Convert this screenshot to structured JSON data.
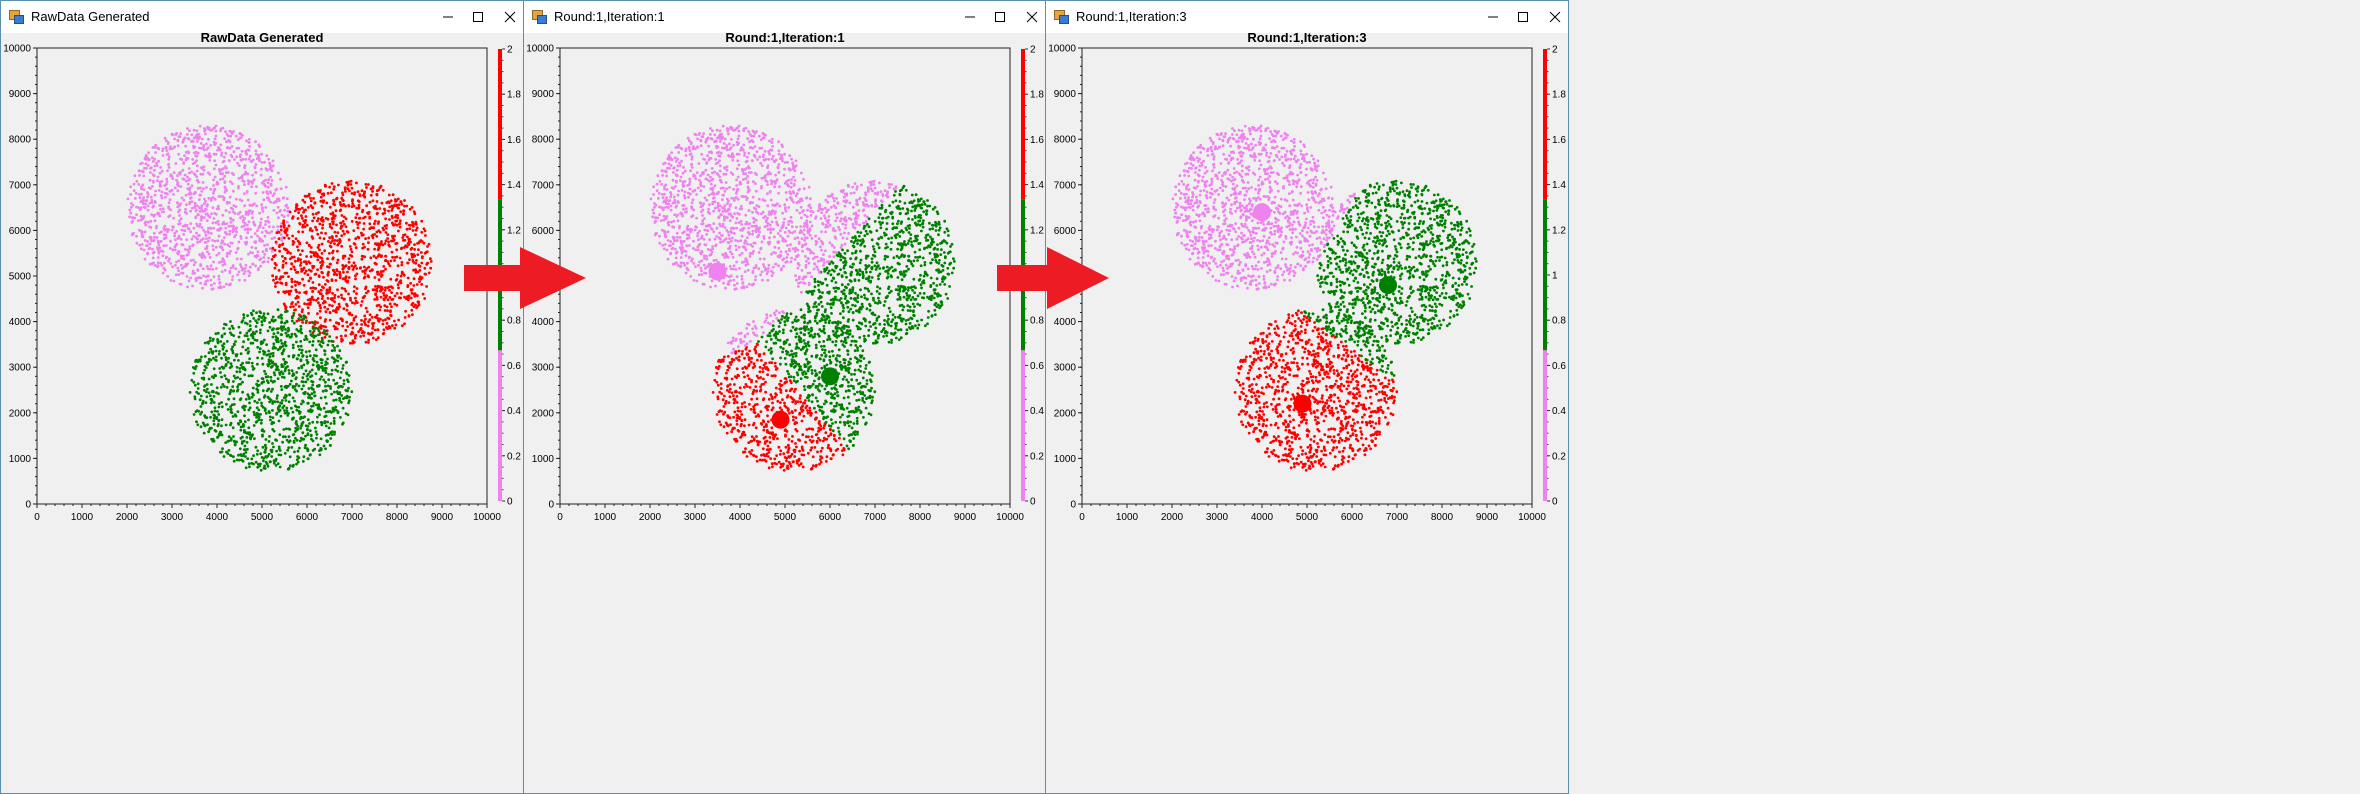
{
  "windows": [
    {
      "title": "RawData Generated",
      "chart_data": {
        "type": "scatter",
        "title": "RawData Generated",
        "xlim": [
          0,
          10000
        ],
        "ylim": [
          0,
          10000
        ],
        "xticks": [
          0,
          1000,
          2000,
          3000,
          4000,
          5000,
          6000,
          7000,
          8000,
          9000,
          10000
        ],
        "yticks": [
          0,
          1000,
          2000,
          3000,
          4000,
          5000,
          6000,
          7000,
          8000,
          9000,
          10000
        ],
        "colorbar": {
          "ticks": [
            "0",
            "0.2",
            "0.4",
            "0.6",
            "0.8",
            "1",
            "1.2",
            "1.4",
            "1.6",
            "1.8",
            "2"
          ],
          "colors": [
            "#ee82ee",
            "#008000",
            "#ff0000"
          ]
        },
        "clusters": [
          {
            "color": "#ee82ee",
            "center": [
              3800,
              6500
            ],
            "radius": 1800
          },
          {
            "color": "#ff0000",
            "center": [
              7000,
              5300
            ],
            "radius": 1800
          },
          {
            "color": "#008000",
            "center": [
              5200,
              2500
            ],
            "radius": 1800
          }
        ],
        "assignment": "by_cluster",
        "centroids": []
      }
    },
    {
      "title": "Round:1,Iteration:1",
      "chart_data": {
        "type": "scatter",
        "title": "Round:1,Iteration:1",
        "xlim": [
          0,
          10000
        ],
        "ylim": [
          0,
          10000
        ],
        "xticks": [
          0,
          1000,
          2000,
          3000,
          4000,
          5000,
          6000,
          7000,
          8000,
          9000,
          10000
        ],
        "yticks": [
          0,
          1000,
          2000,
          3000,
          4000,
          5000,
          6000,
          7000,
          8000,
          9000,
          10000
        ],
        "colorbar": {
          "ticks": [
            "0",
            "0.2",
            "0.4",
            "0.6",
            "0.8",
            "1",
            "1.2",
            "1.4",
            "1.6",
            "1.8",
            "2"
          ],
          "colors": [
            "#ee82ee",
            "#008000",
            "#ff0000"
          ]
        },
        "clusters": [
          {
            "center": [
              3800,
              6500
            ],
            "radius": 1800
          },
          {
            "center": [
              7000,
              5300
            ],
            "radius": 1800
          },
          {
            "center": [
              5200,
              2500
            ],
            "radius": 1800
          }
        ],
        "assignment": "nearest_centroid",
        "centroids": [
          {
            "color": "#ee82ee",
            "x": 3500,
            "y": 5100
          },
          {
            "color": "#008000",
            "x": 6000,
            "y": 2800
          },
          {
            "color": "#ff0000",
            "x": 4900,
            "y": 1850
          }
        ]
      }
    },
    {
      "title": "Round:1,Iteration:3",
      "chart_data": {
        "type": "scatter",
        "title": "Round:1,Iteration:3",
        "xlim": [
          0,
          10000
        ],
        "ylim": [
          0,
          10000
        ],
        "xticks": [
          0,
          1000,
          2000,
          3000,
          4000,
          5000,
          6000,
          7000,
          8000,
          9000,
          10000
        ],
        "yticks": [
          0,
          1000,
          2000,
          3000,
          4000,
          5000,
          6000,
          7000,
          8000,
          9000,
          10000
        ],
        "colorbar": {
          "ticks": [
            "0",
            "0.2",
            "0.4",
            "0.6",
            "0.8",
            "1",
            "1.2",
            "1.4",
            "1.6",
            "1.8",
            "2"
          ],
          "colors": [
            "#ee82ee",
            "#008000",
            "#ff0000"
          ]
        },
        "clusters": [
          {
            "center": [
              3800,
              6500
            ],
            "radius": 1800
          },
          {
            "center": [
              7000,
              5300
            ],
            "radius": 1800
          },
          {
            "center": [
              5200,
              2500
            ],
            "radius": 1800
          }
        ],
        "assignment": "nearest_centroid",
        "centroids": [
          {
            "color": "#ee82ee",
            "x": 4000,
            "y": 6400
          },
          {
            "color": "#008000",
            "x": 6800,
            "y": 4800
          },
          {
            "color": "#ff0000",
            "x": 4900,
            "y": 2200
          }
        ]
      }
    }
  ],
  "arrow_color": "#ed1c24"
}
